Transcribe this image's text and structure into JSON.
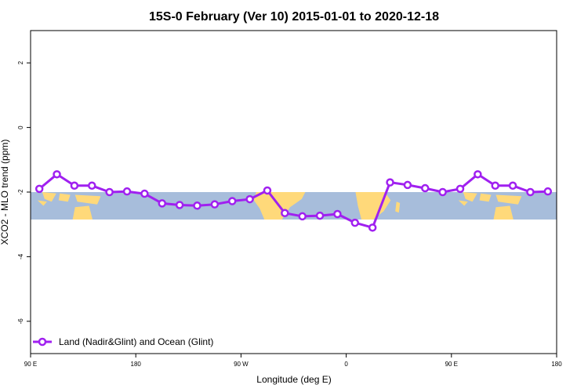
{
  "chart_data": {
    "type": "line",
    "title": "15S-0 February (Ver 10)   2015-01-01 to 2020-12-18",
    "xlabel": "Longitude (deg E)",
    "ylabel": "XCO2 - MLO trend (ppm)",
    "xlim": [
      90,
      540
    ],
    "ylim": [
      -7,
      3
    ],
    "x_ticks": [
      {
        "value": 90,
        "label": "90 E"
      },
      {
        "value": 180,
        "label": "180"
      },
      {
        "value": 270,
        "label": "90 W"
      },
      {
        "value": 360,
        "label": "0"
      },
      {
        "value": 450,
        "label": "90 E"
      },
      {
        "value": 540,
        "label": "180"
      }
    ],
    "y_ticks": [
      {
        "value": 2,
        "label": "2"
      },
      {
        "value": 0,
        "label": "0"
      },
      {
        "value": -2,
        "label": "-2"
      },
      {
        "value": -4,
        "label": "-4"
      },
      {
        "value": -6,
        "label": "-6"
      }
    ],
    "grid": false,
    "legend": {
      "position": "bottom-left"
    },
    "background_band": {
      "lat_range": [
        -15,
        0
      ],
      "y_range": [
        -2.0,
        -2.85
      ],
      "ocean_color": "#a7bddb",
      "land_color": "#ffd97a"
    },
    "series": [
      {
        "name": "Land (Nadir&Glint) and Ocean (Glint)",
        "color": "#a020f0",
        "x": [
          97.5,
          112.5,
          127.5,
          142.5,
          157.5,
          172.5,
          187.5,
          202.5,
          217.5,
          232.5,
          247.5,
          262.5,
          277.5,
          292.5,
          307.5,
          322.5,
          337.5,
          352.5,
          367.5,
          382.5,
          397.5,
          412.5,
          427.5,
          442.5,
          457.5,
          472.5,
          487.5,
          502.5,
          517.5,
          532.5
        ],
        "y": [
          -1.9,
          -1.45,
          -1.8,
          -1.8,
          -2.0,
          -1.98,
          -2.05,
          -2.35,
          -2.4,
          -2.42,
          -2.38,
          -2.28,
          -2.22,
          -1.95,
          -2.65,
          -2.75,
          -2.73,
          -2.68,
          -2.95,
          -3.1,
          -1.7,
          -1.78,
          -1.88,
          -2.0,
          -1.9,
          -1.45,
          -1.8,
          -1.8,
          -2.0,
          -1.98
        ]
      }
    ]
  }
}
